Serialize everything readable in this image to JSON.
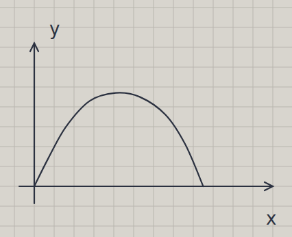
{
  "chart_data": {
    "type": "line",
    "xlabel": "x",
    "ylabel": "y",
    "x": [
      0,
      0.7,
      1.6,
      2.8,
      4.1,
      5.3,
      6.6,
      7.6,
      8.5
    ],
    "values": [
      0,
      1.4,
      3.0,
      4.3,
      4.7,
      4.5,
      3.6,
      2.1,
      0
    ],
    "xlim": [
      0,
      12
    ],
    "ylim": [
      0,
      7.2
    ],
    "tick_labels": false,
    "color": "#2b3140"
  }
}
